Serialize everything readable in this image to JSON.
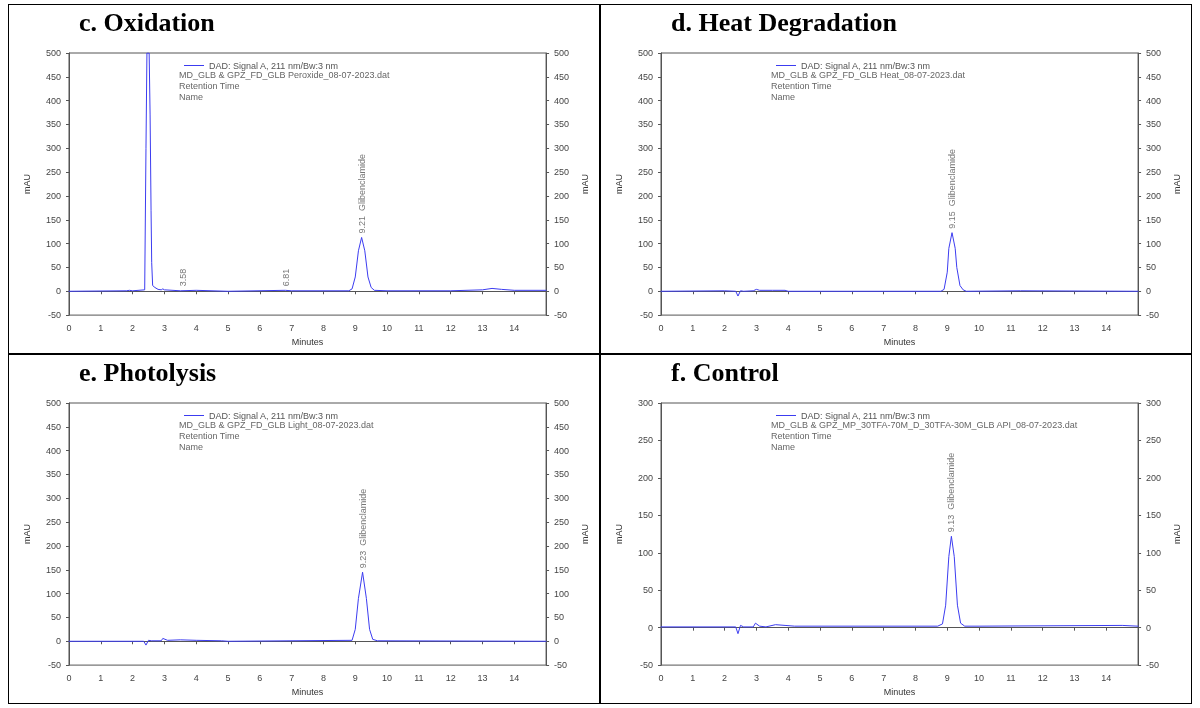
{
  "chart_data": [
    {
      "type": "line",
      "title": "c. Oxidation",
      "xlabel": "Minutes",
      "ylabel": "mAU",
      "y2label": "mAU",
      "xlim": [
        0,
        15
      ],
      "xticks": [
        0,
        1,
        2,
        3,
        4,
        5,
        6,
        7,
        8,
        9,
        10,
        11,
        12,
        13,
        14
      ],
      "ylim": [
        -50,
        500
      ],
      "yticks": [
        -50,
        0,
        50,
        100,
        150,
        200,
        250,
        300,
        350,
        400,
        450,
        500
      ],
      "y2lim": [
        -50,
        500
      ],
      "y2ticks": [
        -50,
        0,
        50,
        100,
        150,
        200,
        250,
        300,
        350,
        400,
        450,
        500
      ],
      "legend": "top left",
      "marker": "none",
      "line_style": "solid",
      "series": [
        {
          "name": "DAD: Signal A, 211 nm/Bw:3 nm",
          "color": "#3c3cf0",
          "x": [
            0,
            1.8,
            1.9,
            2.0,
            2.38,
            2.42,
            2.45,
            2.52,
            2.55,
            2.58,
            2.6,
            2.63,
            2.7,
            2.8,
            2.9,
            2.95,
            3.0,
            3.5,
            4.0,
            5.0,
            6.8,
            7.0,
            8.8,
            8.9,
            9.0,
            9.1,
            9.2,
            9.3,
            9.4,
            9.5,
            9.6,
            10,
            12,
            13,
            13.3,
            13.6,
            14,
            15
          ],
          "values": [
            0,
            1,
            2,
            1,
            3,
            300,
            500,
            500,
            370,
            170,
            60,
            12,
            8,
            4,
            3,
            5,
            3,
            1,
            2,
            0,
            2,
            1,
            1,
            5,
            30,
            85,
            113,
            85,
            30,
            8,
            2,
            1,
            1,
            3,
            6,
            4,
            2,
            2
          ]
        }
      ],
      "annotations": [
        "MD_GLB & GPZ_FD_GLB Peroxide_08-07-2023.dat",
        "Retention Time",
        "Name",
        {
          "text": "3.58",
          "x": 3.58,
          "y": 2
        },
        {
          "text": "6.81",
          "x": 6.81,
          "y": 2
        },
        {
          "text": "9.21  Glibenclamide",
          "x": 9.21,
          "y": 113
        }
      ]
    },
    {
      "type": "line",
      "title": "d. Heat Degradation",
      "xlabel": "Minutes",
      "ylabel": "mAU",
      "y2label": "mAU",
      "xlim": [
        0,
        15
      ],
      "xticks": [
        0,
        1,
        2,
        3,
        4,
        5,
        6,
        7,
        8,
        9,
        10,
        11,
        12,
        13,
        14
      ],
      "ylim": [
        -50,
        500
      ],
      "yticks": [
        -50,
        0,
        50,
        100,
        150,
        200,
        250,
        300,
        350,
        400,
        450,
        500
      ],
      "y2lim": [
        -50,
        500
      ],
      "y2ticks": [
        -50,
        0,
        50,
        100,
        150,
        200,
        250,
        300,
        350,
        400,
        450,
        500
      ],
      "legend": "top left",
      "marker": "none",
      "line_style": "solid",
      "series": [
        {
          "name": "DAD: Signal A, 211 nm/Bw:3 nm",
          "color": "#3c3cf0",
          "x": [
            0,
            2.0,
            2.35,
            2.42,
            2.5,
            2.6,
            2.9,
            3.0,
            3.1,
            3.5,
            3.9,
            4.0,
            8.8,
            8.9,
            9.0,
            9.05,
            9.15,
            9.25,
            9.3,
            9.4,
            9.5,
            9.6,
            11.3,
            15
          ],
          "values": [
            0,
            1,
            0,
            -10,
            1,
            0,
            1,
            4,
            2,
            2,
            2,
            0,
            0,
            4,
            40,
            90,
            123,
            90,
            50,
            12,
            3,
            0,
            1,
            0
          ]
        }
      ],
      "annotations": [
        "MD_GLB & GPZ_FD_GLB Heat_08-07-2023.dat",
        "Retention Time",
        "Name",
        {
          "text": "9.15  Glibenclamide",
          "x": 9.15,
          "y": 123
        }
      ]
    },
    {
      "type": "line",
      "title": "e. Photolysis",
      "xlabel": "Minutes",
      "ylabel": "mAU",
      "y2label": "mAU",
      "xlim": [
        0,
        15
      ],
      "xticks": [
        0,
        1,
        2,
        3,
        4,
        5,
        6,
        7,
        8,
        9,
        10,
        11,
        12,
        13,
        14
      ],
      "ylim": [
        -50,
        500
      ],
      "yticks": [
        -50,
        0,
        50,
        100,
        150,
        200,
        250,
        300,
        350,
        400,
        450,
        500
      ],
      "y2lim": [
        -50,
        500
      ],
      "y2ticks": [
        -50,
        0,
        50,
        100,
        150,
        200,
        250,
        300,
        350,
        400,
        450,
        500
      ],
      "legend": "top left",
      "marker": "none",
      "line_style": "solid",
      "series": [
        {
          "name": "DAD: Signal A, 211 nm/Bw:3 nm",
          "color": "#3c3cf0",
          "x": [
            0,
            2.35,
            2.42,
            2.5,
            2.6,
            2.9,
            2.95,
            3.1,
            3.5,
            4.0,
            4.8,
            5.0,
            8.9,
            9.0,
            9.1,
            9.23,
            9.35,
            9.45,
            9.55,
            9.7,
            15
          ],
          "values": [
            0,
            0,
            -8,
            2,
            1,
            1,
            6,
            2,
            3,
            2,
            1,
            0,
            2,
            25,
            90,
            145,
            90,
            25,
            4,
            1,
            0
          ]
        }
      ],
      "annotations": [
        "MD_GLB & GPZ_FD_GLB Light_08-07-2023.dat",
        "Retention Time",
        "Name",
        {
          "text": "9.23  Glibenclamide",
          "x": 9.23,
          "y": 145
        }
      ]
    },
    {
      "type": "line",
      "title": "f. Control",
      "xlabel": "Minutes",
      "ylabel": "mAU",
      "y2label": "mAU",
      "xlim": [
        0,
        15
      ],
      "xticks": [
        0,
        1,
        2,
        3,
        4,
        5,
        6,
        7,
        8,
        9,
        10,
        11,
        12,
        13,
        14
      ],
      "ylim": [
        -50,
        300
      ],
      "yticks": [
        -50,
        0,
        50,
        100,
        150,
        200,
        250,
        300
      ],
      "y2lim": [
        -50,
        300
      ],
      "y2ticks": [
        -50,
        0,
        50,
        100,
        150,
        200,
        250,
        300
      ],
      "legend": "top left",
      "marker": "none",
      "line_style": "solid",
      "series": [
        {
          "name": "DAD: Signal A, 211 nm/Bw:3 nm",
          "color": "#3c3cf0",
          "x": [
            0,
            2.35,
            2.42,
            2.5,
            2.6,
            2.9,
            2.97,
            3.1,
            3.3,
            3.6,
            3.9,
            4.2,
            8.7,
            8.85,
            8.95,
            9.05,
            9.13,
            9.22,
            9.32,
            9.42,
            9.55,
            10,
            14.5,
            15
          ],
          "values": [
            1,
            1,
            -8,
            3,
            1,
            1,
            6,
            2,
            1,
            4,
            3,
            2,
            2,
            5,
            30,
            95,
            122,
            95,
            30,
            6,
            2,
            2,
            3,
            2
          ]
        }
      ],
      "annotations": [
        "MD_GLB & GPZ_MP_30TFA-70M_D_30TFA-30M_GLB API_08-07-2023.dat",
        "Retention Time",
        "Name",
        {
          "text": "9.13  Glibenclamide",
          "x": 9.13,
          "y": 122
        }
      ]
    }
  ]
}
